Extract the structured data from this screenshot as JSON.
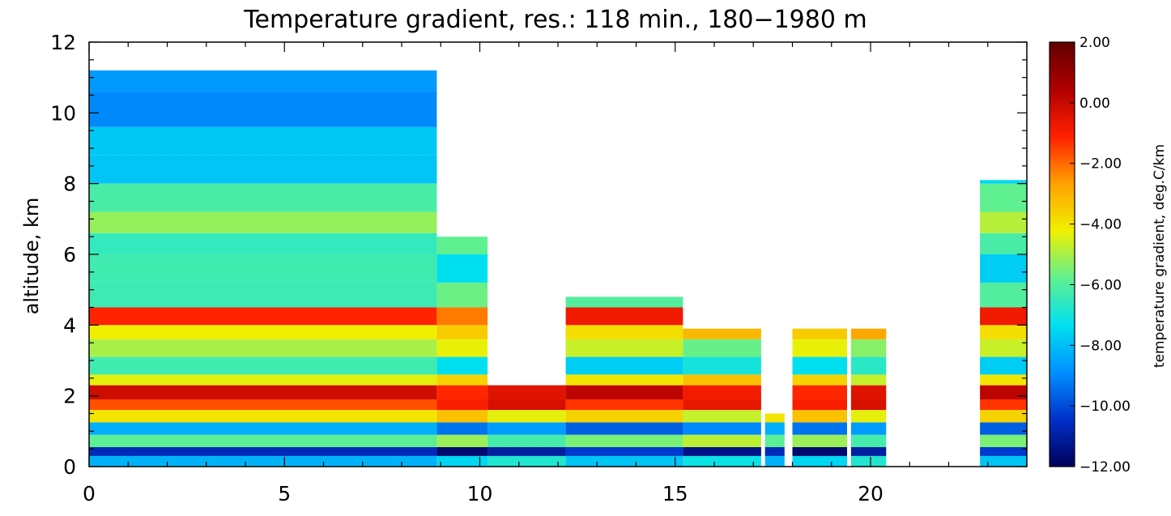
{
  "chart_data": {
    "type": "heatmap",
    "title": "Temperature gradient, res.: 118 min., 180−1980 m",
    "xlabel": "",
    "ylabel": "altitude, km",
    "xlim": [
      0,
      24
    ],
    "ylim": [
      0,
      12
    ],
    "x_ticks": [
      0,
      5,
      10,
      15,
      20
    ],
    "y_ticks": [
      0,
      2,
      4,
      6,
      8,
      10,
      12
    ],
    "colorbar": {
      "label": "temperature gradient, deg.C/km",
      "range": [
        -12.0,
        2.0
      ],
      "ticks": [
        "2.00",
        "0.00",
        "−2.00",
        "−4.00",
        "−6.00",
        "−8.00",
        "−10.00",
        "−12.00"
      ],
      "tick_values": [
        2,
        0,
        -2,
        -4,
        -6,
        -8,
        -10,
        -12
      ],
      "colormap": [
        "#00005a",
        "#0030c8",
        "#0090ff",
        "#00e0f0",
        "#60f090",
        "#f0f000",
        "#ffa000",
        "#ff2000",
        "#b00000",
        "#600000"
      ]
    },
    "data_regions": [
      {
        "x_start": 0.0,
        "x_end": 8.9,
        "top_km": 11.2,
        "bottom_km": 0.0
      },
      {
        "x_start": 8.9,
        "x_end": 10.2,
        "top_km": 6.5,
        "bottom_km": 0.0
      },
      {
        "x_start": 10.2,
        "x_end": 12.2,
        "top_km": 2.3,
        "bottom_km": 0.0
      },
      {
        "x_start": 12.2,
        "x_end": 15.2,
        "top_km": 4.8,
        "bottom_km": 0.0
      },
      {
        "x_start": 15.2,
        "x_end": 17.2,
        "top_km": 3.9,
        "bottom_km": 0.0
      },
      {
        "x_start": 17.3,
        "x_end": 17.8,
        "top_km": 1.5,
        "bottom_km": 0.0
      },
      {
        "x_start": 18.0,
        "x_end": 19.4,
        "top_km": 3.9,
        "bottom_km": 0.0
      },
      {
        "x_start": 19.5,
        "x_end": 20.4,
        "top_km": 3.9,
        "bottom_km": 0.0
      },
      {
        "x_start": 22.8,
        "x_end": 24.0,
        "top_km": 8.1,
        "bottom_km": 0.0
      }
    ],
    "bands": [
      {
        "bottom_km": 0.0,
        "top_km": 0.3,
        "value": -7.5
      },
      {
        "bottom_km": 0.3,
        "top_km": 0.55,
        "value": -11.0
      },
      {
        "bottom_km": 0.55,
        "top_km": 0.9,
        "value": -5.5
      },
      {
        "bottom_km": 0.9,
        "top_km": 1.25,
        "value": -9.0
      },
      {
        "bottom_km": 1.25,
        "top_km": 1.6,
        "value": -4.0
      },
      {
        "bottom_km": 1.6,
        "top_km": 1.9,
        "value": -1.0
      },
      {
        "bottom_km": 1.9,
        "top_km": 2.3,
        "value": -0.5
      },
      {
        "bottom_km": 2.3,
        "top_km": 2.6,
        "value": -4.0
      },
      {
        "bottom_km": 2.6,
        "top_km": 3.1,
        "value": -7.0
      },
      {
        "bottom_km": 3.1,
        "top_km": 3.6,
        "value": -5.0
      },
      {
        "bottom_km": 3.6,
        "top_km": 4.0,
        "value": -3.5
      },
      {
        "bottom_km": 4.0,
        "top_km": 4.5,
        "value": -1.5
      },
      {
        "bottom_km": 4.5,
        "top_km": 5.2,
        "value": -6.0
      },
      {
        "bottom_km": 5.2,
        "top_km": 6.0,
        "value": -7.0
      },
      {
        "bottom_km": 6.0,
        "top_km": 6.6,
        "value": -6.5
      },
      {
        "bottom_km": 6.6,
        "top_km": 7.2,
        "value": -4.5
      },
      {
        "bottom_km": 7.2,
        "top_km": 8.0,
        "value": -6.5
      },
      {
        "bottom_km": 8.0,
        "top_km": 8.8,
        "value": -7.5
      },
      {
        "bottom_km": 8.8,
        "top_km": 9.6,
        "value": -8.5
      },
      {
        "bottom_km": 9.6,
        "top_km": 10.6,
        "value": -9.0
      },
      {
        "bottom_km": 10.6,
        "top_km": 12.2,
        "value": -8.0
      }
    ]
  }
}
